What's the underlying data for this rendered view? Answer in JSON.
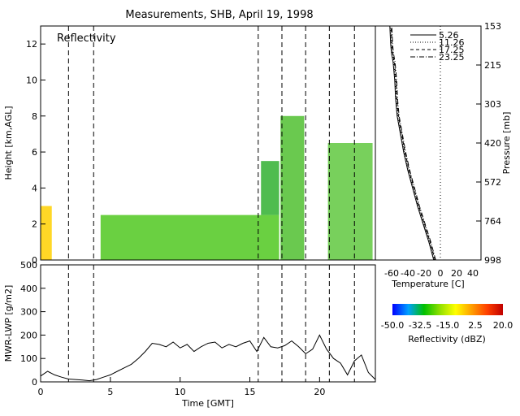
{
  "chart_data": [
    {
      "type": "heatmap",
      "title": "Measurements, SHB, April 19, 1998",
      "annotation": "Reflectivity",
      "xlabel": "",
      "ylabel": "Height [km,AGL]",
      "xlim": [
        0,
        24
      ],
      "ylim": [
        0,
        13
      ],
      "yticks": [
        "0",
        "2",
        "4",
        "6",
        "8",
        "10",
        "12"
      ],
      "marker_times": [
        2.0,
        3.8,
        15.6,
        17.3,
        19.0,
        20.7,
        22.5
      ],
      "echo_regions": [
        {
          "t0": 0.0,
          "t1": 0.8,
          "h0": 0.0,
          "h1": 3.0
        },
        {
          "t0": 4.3,
          "t1": 17.1,
          "h0": 0.0,
          "h1": 2.5
        },
        {
          "t0": 15.8,
          "t1": 17.1,
          "h0": 2.5,
          "h1": 5.5
        },
        {
          "t0": 17.2,
          "t1": 18.9,
          "h0": 0.0,
          "h1": 8.0
        },
        {
          "t0": 20.6,
          "t1": 23.8,
          "h0": 0.0,
          "h1": 6.5
        }
      ]
    },
    {
      "type": "line",
      "xlabel": "Temperature [C]",
      "ylabel": "Pressure [mb]",
      "pressure_labels": [
        "153",
        "215",
        "303",
        "420",
        "572",
        "764",
        "998"
      ],
      "temperature_ticks": [
        "-60",
        "-40",
        "-20",
        "0",
        "20",
        "40"
      ],
      "temperature_values": [
        -60,
        -40,
        -20,
        0,
        20,
        40
      ],
      "xlim": [
        -80,
        50
      ],
      "series": [
        {
          "name": "5.26",
          "dash": "solid"
        },
        {
          "name": "11.26",
          "dash": "dotted"
        },
        {
          "name": "17.25",
          "dash": "dashed"
        },
        {
          "name": "23.25",
          "dash": "dashdot"
        }
      ],
      "profile": {
        "heights_km": [
          0,
          0.5,
          1,
          2,
          3,
          4,
          5,
          6,
          7,
          8,
          9,
          10,
          11,
          11.5,
          12,
          13
        ],
        "temps_c": [
          -7,
          -10,
          -13,
          -20,
          -27,
          -33,
          -39,
          -44,
          -48,
          -52,
          -54,
          -55,
          -57,
          -59,
          -60,
          -61
        ]
      }
    },
    {
      "type": "line",
      "xlabel": "Time [GMT]",
      "ylabel": "MWR-LWP [g/m2]",
      "xlim": [
        0,
        24
      ],
      "ylim": [
        0,
        500
      ],
      "xticks": [
        "0",
        "5",
        "10",
        "15",
        "20"
      ],
      "yticks": [
        "0",
        "100",
        "200",
        "300",
        "400",
        "500"
      ],
      "x": [
        0,
        0.5,
        1,
        1.5,
        2,
        2.5,
        3,
        3.5,
        4,
        4.5,
        5,
        5.5,
        6,
        6.5,
        7,
        7.5,
        8,
        8.5,
        9,
        9.5,
        10,
        10.5,
        11,
        11.5,
        12,
        12.5,
        13,
        13.5,
        14,
        14.5,
        15,
        15.5,
        16,
        16.5,
        17,
        17.5,
        18,
        18.5,
        19,
        19.5,
        20,
        20.5,
        21,
        21.5,
        22,
        22.5,
        23,
        23.5,
        24
      ],
      "y": [
        25,
        45,
        30,
        20,
        12,
        10,
        8,
        5,
        10,
        20,
        30,
        45,
        60,
        75,
        100,
        130,
        165,
        160,
        150,
        170,
        145,
        160,
        130,
        150,
        165,
        170,
        145,
        160,
        150,
        165,
        175,
        130,
        190,
        150,
        145,
        155,
        175,
        150,
        120,
        140,
        200,
        140,
        100,
        80,
        30,
        90,
        115,
        40,
        10
      ]
    }
  ],
  "colorbar": {
    "ticks": [
      "-50.0",
      "-32.5",
      "-15.0",
      "2.5",
      "20.0"
    ],
    "label": "Reflectivity (dBZ)",
    "stops": [
      "#0000ff",
      "#00a0ff",
      "#00c000",
      "#90e000",
      "#ffff00",
      "#ffa000",
      "#ff4000",
      "#c00000"
    ]
  }
}
